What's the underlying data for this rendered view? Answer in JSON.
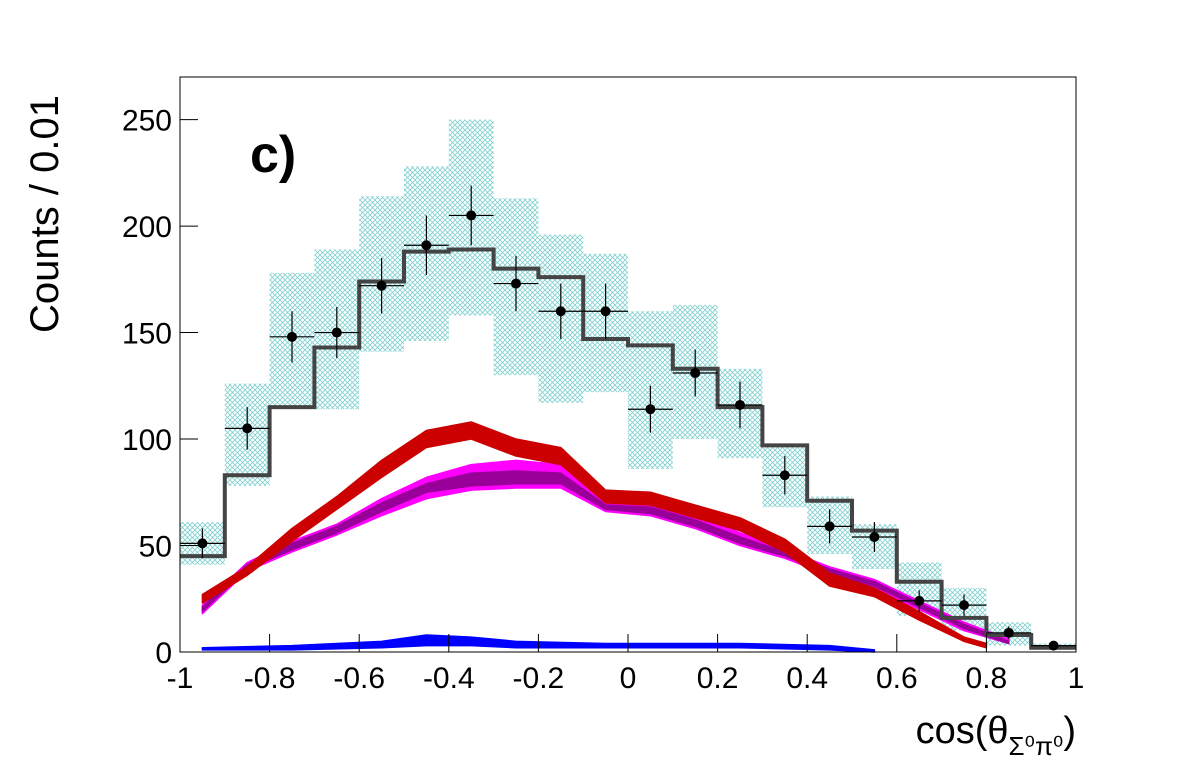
{
  "chart_data": {
    "type": "histogram",
    "label": "c)",
    "ylabel": "Counts / 0.01",
    "xlabel": {
      "main": "cos(θ",
      "sub": "Σ⁰π⁰",
      "close": ")"
    },
    "xlim": [
      -1,
      1
    ],
    "ylim": [
      0,
      270
    ],
    "xticks": [
      -1,
      -0.8,
      -0.6,
      -0.4,
      -0.2,
      0,
      0.2,
      0.4,
      0.6,
      0.8,
      1
    ],
    "yticks": [
      0,
      50,
      100,
      150,
      200,
      250
    ],
    "bins": [
      -1,
      -0.9,
      -0.8,
      -0.7,
      -0.6,
      -0.5,
      -0.4,
      -0.3,
      -0.2,
      -0.1,
      0,
      0.1,
      0.2,
      0.3,
      0.4,
      0.5,
      0.6,
      0.7,
      0.8,
      0.9,
      1
    ],
    "syst": {
      "color": "#7fcfcf",
      "upper": [
        61,
        126,
        178,
        189,
        214,
        228,
        250,
        213,
        196,
        187,
        160,
        163,
        133,
        97,
        73,
        60,
        42,
        30,
        14,
        4
      ],
      "lower": [
        41,
        78,
        114,
        114,
        141,
        146,
        158,
        130,
        117,
        122,
        86,
        100,
        91,
        68,
        46,
        39,
        17,
        10,
        3,
        1
      ]
    },
    "histogram": {
      "color": "#444444",
      "values": [
        45,
        83,
        115,
        143,
        174,
        188,
        189,
        180,
        176,
        147,
        144,
        133,
        115,
        97,
        71,
        57,
        33,
        16,
        8,
        2
      ]
    },
    "bands": [
      {
        "color": "#ff00ff",
        "x": [
          -0.95,
          -0.85,
          -0.75,
          -0.65,
          -0.55,
          -0.45,
          -0.35,
          -0.25,
          -0.15,
          -0.05,
          0.05,
          0.15,
          0.25,
          0.35,
          0.45,
          0.55,
          0.65,
          0.75,
          0.85
        ],
        "lower": [
          18,
          38,
          47,
          55,
          64,
          72,
          76,
          77,
          77,
          66,
          64,
          58,
          50,
          44,
          36,
          30,
          20,
          10,
          4
        ],
        "upper": [
          22,
          42,
          52,
          60,
          72,
          82,
          88,
          90,
          88,
          70,
          70,
          64,
          56,
          48,
          40,
          34,
          24,
          14,
          6
        ]
      },
      {
        "color": "#990099",
        "x": [
          -0.95,
          -0.85,
          -0.75,
          -0.65,
          -0.55,
          -0.45,
          -0.35,
          -0.25,
          -0.15,
          -0.05,
          0.05,
          0.15,
          0.25,
          0.35,
          0.45,
          0.55,
          0.65,
          0.75,
          0.85
        ],
        "lower": [
          19,
          39,
          48,
          56,
          66,
          75,
          78,
          79,
          79,
          67,
          65,
          59,
          51,
          45,
          37,
          31,
          21,
          11,
          4
        ],
        "upper": [
          21,
          41,
          51,
          59,
          70,
          79,
          84,
          85,
          84,
          69,
          68,
          62,
          54,
          47,
          39,
          33,
          23,
          13,
          5
        ]
      },
      {
        "color": "#cc0000",
        "x": [
          -0.95,
          -0.85,
          -0.75,
          -0.65,
          -0.55,
          -0.45,
          -0.35,
          -0.25,
          -0.15,
          -0.05,
          0.05,
          0.15,
          0.25,
          0.35,
          0.45,
          0.55,
          0.65,
          0.75,
          0.8
        ],
        "lower": [
          23,
          36,
          52,
          67,
          82,
          96,
          100,
          92,
          88,
          70,
          69,
          63,
          57,
          47,
          31,
          26,
          15,
          5,
          2
        ],
        "upper": [
          27,
          40,
          58,
          73,
          90,
          104,
          108,
          100,
          96,
          76,
          75,
          69,
          63,
          53,
          37,
          30,
          19,
          7,
          4
        ]
      },
      {
        "color": "#0000ff",
        "x": [
          -0.95,
          -0.75,
          -0.55,
          -0.45,
          -0.35,
          -0.25,
          -0.05,
          0.25,
          0.45,
          0.55
        ],
        "lower": [
          1,
          1,
          2,
          3,
          3,
          2,
          2,
          2,
          1,
          0
        ],
        "upper": [
          2,
          3,
          5,
          8,
          7,
          5,
          4,
          4,
          3,
          1
        ]
      }
    ],
    "points": {
      "color": "#000000",
      "x": [
        -0.95,
        -0.85,
        -0.75,
        -0.65,
        -0.55,
        -0.45,
        -0.35,
        -0.25,
        -0.15,
        -0.05,
        0.05,
        0.15,
        0.25,
        0.35,
        0.45,
        0.55,
        0.65,
        0.75,
        0.85,
        0.95
      ],
      "values": [
        51,
        105,
        148,
        150,
        172,
        191,
        205,
        173,
        160,
        160,
        114,
        131,
        116,
        83,
        59,
        54,
        24,
        22,
        9,
        3
      ],
      "errors": [
        7,
        10,
        12,
        12,
        13,
        14,
        14,
        13,
        13,
        13,
        11,
        11,
        11,
        9,
        8,
        7,
        5,
        5,
        3,
        2
      ],
      "xerr": 0.05
    }
  }
}
